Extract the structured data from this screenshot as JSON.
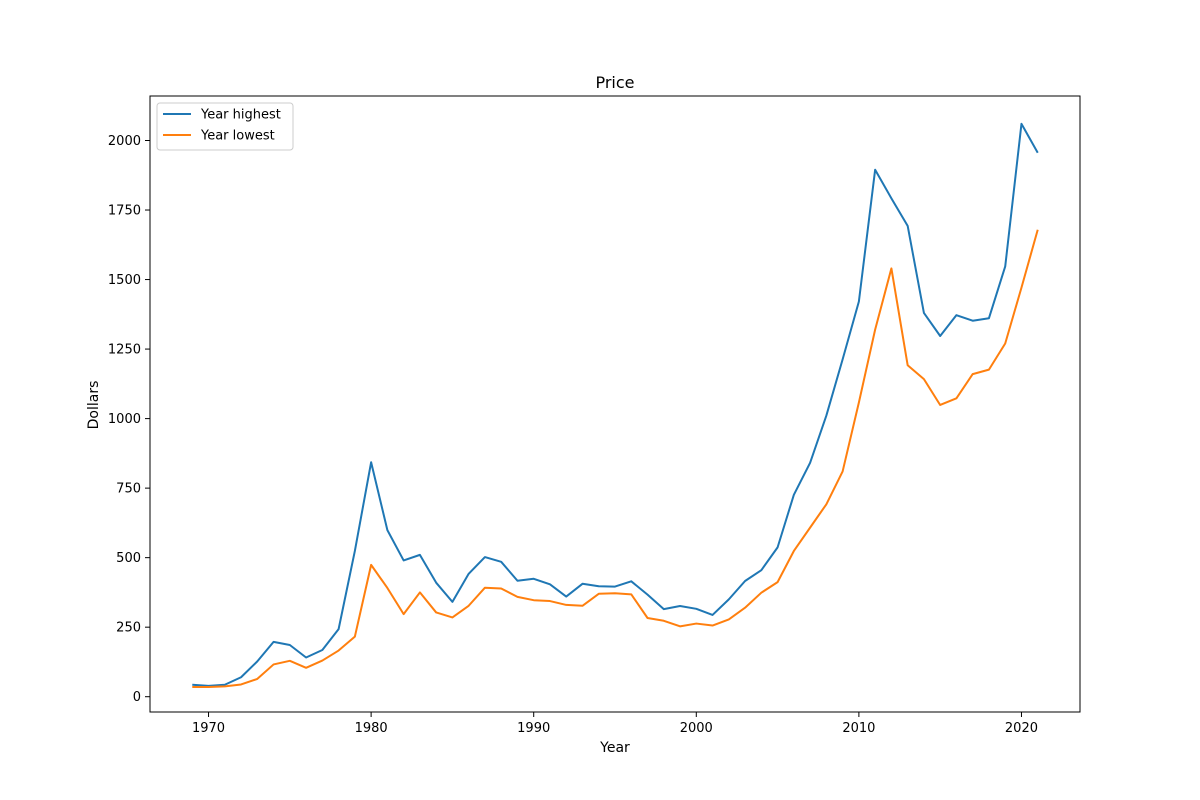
{
  "chart_data": {
    "type": "line",
    "title": "Price",
    "xlabel": "Year",
    "ylabel": "Dollars",
    "xlim": [
      1966.4,
      2023.6
    ],
    "ylim": [
      -55,
      2160
    ],
    "xticks": [
      1970,
      1980,
      1990,
      2000,
      2010,
      2020
    ],
    "yticks": [
      0,
      250,
      500,
      750,
      1000,
      1250,
      1500,
      1750,
      2000
    ],
    "grid": false,
    "legend_position": "top-left",
    "x": [
      1969,
      1970,
      1971,
      1972,
      1973,
      1974,
      1975,
      1976,
      1977,
      1978,
      1979,
      1980,
      1981,
      1982,
      1983,
      1984,
      1985,
      1986,
      1987,
      1988,
      1989,
      1990,
      1991,
      1992,
      1993,
      1994,
      1995,
      1996,
      1997,
      1998,
      1999,
      2000,
      2001,
      2002,
      2003,
      2004,
      2005,
      2006,
      2007,
      2008,
      2009,
      2010,
      2011,
      2012,
      2013,
      2014,
      2015,
      2016,
      2017,
      2018,
      2019,
      2020,
      2021
    ],
    "series": [
      {
        "name": "Year highest",
        "color": "#1f77b4",
        "values": [
          43,
          39,
          43,
          70,
          127,
          197,
          186,
          141,
          168,
          243,
          524,
          843,
          599,
          490,
          510,
          410,
          341,
          442,
          502,
          485,
          417,
          424,
          404,
          360,
          406,
          397,
          396,
          415,
          367,
          315,
          326,
          316,
          294,
          350,
          416,
          455,
          537,
          726,
          841,
          1011,
          1213,
          1421,
          1895,
          1792,
          1693,
          1380,
          1297,
          1372,
          1352,
          1361,
          1547,
          2060,
          1956
        ]
      },
      {
        "name": "Year lowest",
        "color": "#ff7f0e",
        "values": [
          35,
          35,
          37,
          44,
          64,
          116,
          129,
          104,
          130,
          166,
          216,
          474,
          391,
          297,
          375,
          303,
          285,
          327,
          392,
          389,
          359,
          347,
          344,
          330,
          327,
          370,
          372,
          368,
          283,
          273,
          253,
          263,
          256,
          278,
          320,
          374,
          412,
          524,
          608,
          692,
          810,
          1058,
          1320,
          1540,
          1192,
          1142,
          1049,
          1073,
          1160,
          1176,
          1270,
          1471,
          1679
        ]
      }
    ]
  }
}
